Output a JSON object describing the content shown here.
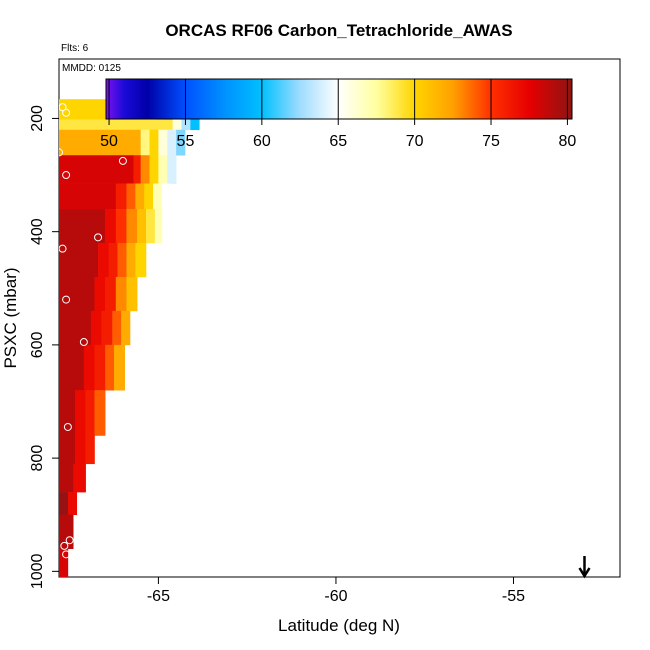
{
  "chart_data": {
    "type": "heatmap",
    "title": "ORCAS RF06 Carbon_Tetrachloride_AWAS",
    "subtitle_flights": "Flts: 6",
    "subtitle_date": "MMDD: 0125",
    "xlabel": "Latitude (deg N)",
    "ylabel": "PSXC (mbar)",
    "xlim": [
      -67.8,
      -52.0
    ],
    "ylim": [
      1010,
      95
    ],
    "x_ticks": [
      -65,
      -60,
      -55
    ],
    "x_tick_labels": [
      "-65",
      "-60",
      "-55"
    ],
    "y_ticks": [
      200,
      400,
      600,
      800,
      1000
    ],
    "y_tick_labels": [
      "200",
      "400",
      "600",
      "800",
      "1000"
    ],
    "colorbar": {
      "min": 49.8,
      "max": 80.3,
      "ticks": [
        50,
        55,
        60,
        65,
        70,
        75,
        80
      ],
      "tick_labels": [
        "50",
        "55",
        "60",
        "65",
        "70",
        "75",
        "80"
      ],
      "stops": [
        [
          49.8,
          "#7d12f0"
        ],
        [
          51.0,
          "#1a0ad8"
        ],
        [
          52.5,
          "#0000a8"
        ],
        [
          55.0,
          "#0050ff"
        ],
        [
          57.5,
          "#0090ff"
        ],
        [
          60.0,
          "#00c0ff"
        ],
        [
          62.5,
          "#9fdcff"
        ],
        [
          65.0,
          "#ffffff"
        ],
        [
          67.5,
          "#ffffa0"
        ],
        [
          70.0,
          "#ffd500"
        ],
        [
          72.5,
          "#ffa000"
        ],
        [
          75.0,
          "#ff3000"
        ],
        [
          77.5,
          "#e60000"
        ],
        [
          80.3,
          "#8e1414"
        ]
      ]
    },
    "rows": [
      {
        "p1": 166,
        "p2": 202,
        "cells": [
          [
            -67.8,
            -65.9,
            70
          ],
          [
            -65.9,
            -65.05,
            69
          ],
          [
            -65.05,
            -64.85,
            58
          ],
          [
            -64.85,
            -64.6,
            51
          ],
          [
            -64.6,
            -64.35,
            67
          ],
          [
            -64.35,
            -64.1,
            62
          ],
          [
            -64.1,
            -63.85,
            60
          ]
        ]
      },
      {
        "p1": 202,
        "p2": 220,
        "cells": [
          [
            -67.8,
            -64.6,
            69
          ],
          [
            -64.6,
            -64.35,
            66
          ],
          [
            -64.35,
            -64.1,
            63
          ],
          [
            -64.1,
            -63.85,
            60
          ]
        ]
      },
      {
        "p1": 220,
        "p2": 265,
        "cells": [
          [
            -67.8,
            -65.5,
            72
          ],
          [
            -65.5,
            -65.25,
            68
          ],
          [
            -65.25,
            -65.0,
            70
          ],
          [
            -65.0,
            -64.75,
            66
          ],
          [
            -64.75,
            -64.5,
            64
          ],
          [
            -64.5,
            -64.25,
            62
          ]
        ]
      },
      {
        "p1": 265,
        "p2": 315,
        "cells": [
          [
            -67.8,
            -65.7,
            78
          ],
          [
            -65.7,
            -65.5,
            76
          ],
          [
            -65.5,
            -65.25,
            73
          ],
          [
            -65.25,
            -65.0,
            70
          ],
          [
            -65.0,
            -64.75,
            67
          ],
          [
            -64.75,
            -64.5,
            64
          ]
        ]
      },
      {
        "p1": 315,
        "p2": 360,
        "cells": [
          [
            -67.8,
            -66.2,
            78
          ],
          [
            -66.2,
            -65.9,
            76
          ],
          [
            -65.9,
            -65.65,
            74
          ],
          [
            -65.65,
            -65.4,
            72
          ],
          [
            -65.4,
            -65.15,
            70
          ],
          [
            -65.15,
            -64.9,
            67
          ],
          [
            -64.9,
            -64.7,
            65
          ]
        ]
      },
      {
        "p1": 360,
        "p2": 420,
        "cells": [
          [
            -67.8,
            -66.5,
            79
          ],
          [
            -66.5,
            -66.2,
            77
          ],
          [
            -66.2,
            -65.9,
            75
          ],
          [
            -65.9,
            -65.6,
            73
          ],
          [
            -65.6,
            -65.35,
            71
          ],
          [
            -65.35,
            -65.1,
            69
          ],
          [
            -65.1,
            -64.9,
            67
          ]
        ]
      },
      {
        "p1": 420,
        "p2": 480,
        "cells": [
          [
            -67.8,
            -66.7,
            79
          ],
          [
            -66.7,
            -66.4,
            77
          ],
          [
            -66.4,
            -66.15,
            76
          ],
          [
            -66.15,
            -65.9,
            74
          ],
          [
            -65.9,
            -65.65,
            72
          ],
          [
            -65.65,
            -65.35,
            70
          ]
        ]
      },
      {
        "p1": 480,
        "p2": 540,
        "cells": [
          [
            -67.8,
            -66.8,
            79
          ],
          [
            -66.8,
            -66.5,
            77
          ],
          [
            -66.5,
            -66.2,
            76
          ],
          [
            -66.2,
            -65.9,
            73
          ],
          [
            -65.9,
            -65.6,
            71
          ]
        ]
      },
      {
        "p1": 540,
        "p2": 600,
        "cells": [
          [
            -67.8,
            -66.9,
            79
          ],
          [
            -66.9,
            -66.6,
            77
          ],
          [
            -66.6,
            -66.3,
            76
          ],
          [
            -66.3,
            -66.05,
            74
          ],
          [
            -66.05,
            -65.8,
            72
          ]
        ]
      },
      {
        "p1": 600,
        "p2": 680,
        "cells": [
          [
            -67.8,
            -67.1,
            79
          ],
          [
            -67.1,
            -66.8,
            77
          ],
          [
            -66.8,
            -66.5,
            76
          ],
          [
            -66.5,
            -66.25,
            74
          ],
          [
            -66.25,
            -65.95,
            72
          ]
        ]
      },
      {
        "p1": 680,
        "p2": 760,
        "cells": [
          [
            -67.8,
            -67.35,
            79
          ],
          [
            -67.35,
            -67.05,
            77
          ],
          [
            -67.05,
            -66.8,
            76
          ],
          [
            -66.8,
            -66.5,
            74
          ]
        ]
      },
      {
        "p1": 760,
        "p2": 810,
        "cells": [
          [
            -67.8,
            -67.35,
            79
          ],
          [
            -67.35,
            -67.05,
            77
          ],
          [
            -67.05,
            -66.8,
            76
          ]
        ]
      },
      {
        "p1": 810,
        "p2": 860,
        "cells": [
          [
            -67.8,
            -67.4,
            79
          ],
          [
            -67.4,
            -67.05,
            77
          ]
        ]
      },
      {
        "p1": 860,
        "p2": 900,
        "cells": [
          [
            -67.8,
            -67.55,
            80
          ],
          [
            -67.55,
            -67.3,
            77
          ]
        ]
      },
      {
        "p1": 900,
        "p2": 960,
        "cells": [
          [
            -67.8,
            -67.4,
            79
          ]
        ]
      },
      {
        "p1": 960,
        "p2": 1010,
        "cells": [
          [
            -67.8,
            -67.55,
            78
          ]
        ]
      }
    ],
    "samples": [
      {
        "lat": -67.7,
        "p": 180
      },
      {
        "lat": -67.6,
        "p": 190
      },
      {
        "lat": -65.2,
        "p": 192
      },
      {
        "lat": -64.8,
        "p": 180
      },
      {
        "lat": -64.0,
        "p": 180
      },
      {
        "lat": -63.6,
        "p": 180
      },
      {
        "lat": -67.8,
        "p": 260
      },
      {
        "lat": -66.0,
        "p": 275
      },
      {
        "lat": -67.6,
        "p": 300
      },
      {
        "lat": -66.7,
        "p": 410
      },
      {
        "lat": -67.7,
        "p": 430
      },
      {
        "lat": -67.6,
        "p": 520
      },
      {
        "lat": -67.1,
        "p": 595
      },
      {
        "lat": -67.55,
        "p": 745
      },
      {
        "lat": -67.5,
        "p": 945
      },
      {
        "lat": -67.65,
        "p": 955
      },
      {
        "lat": -67.6,
        "p": 970
      }
    ],
    "marker": {
      "lat": -53.0,
      "direction": "down"
    }
  }
}
